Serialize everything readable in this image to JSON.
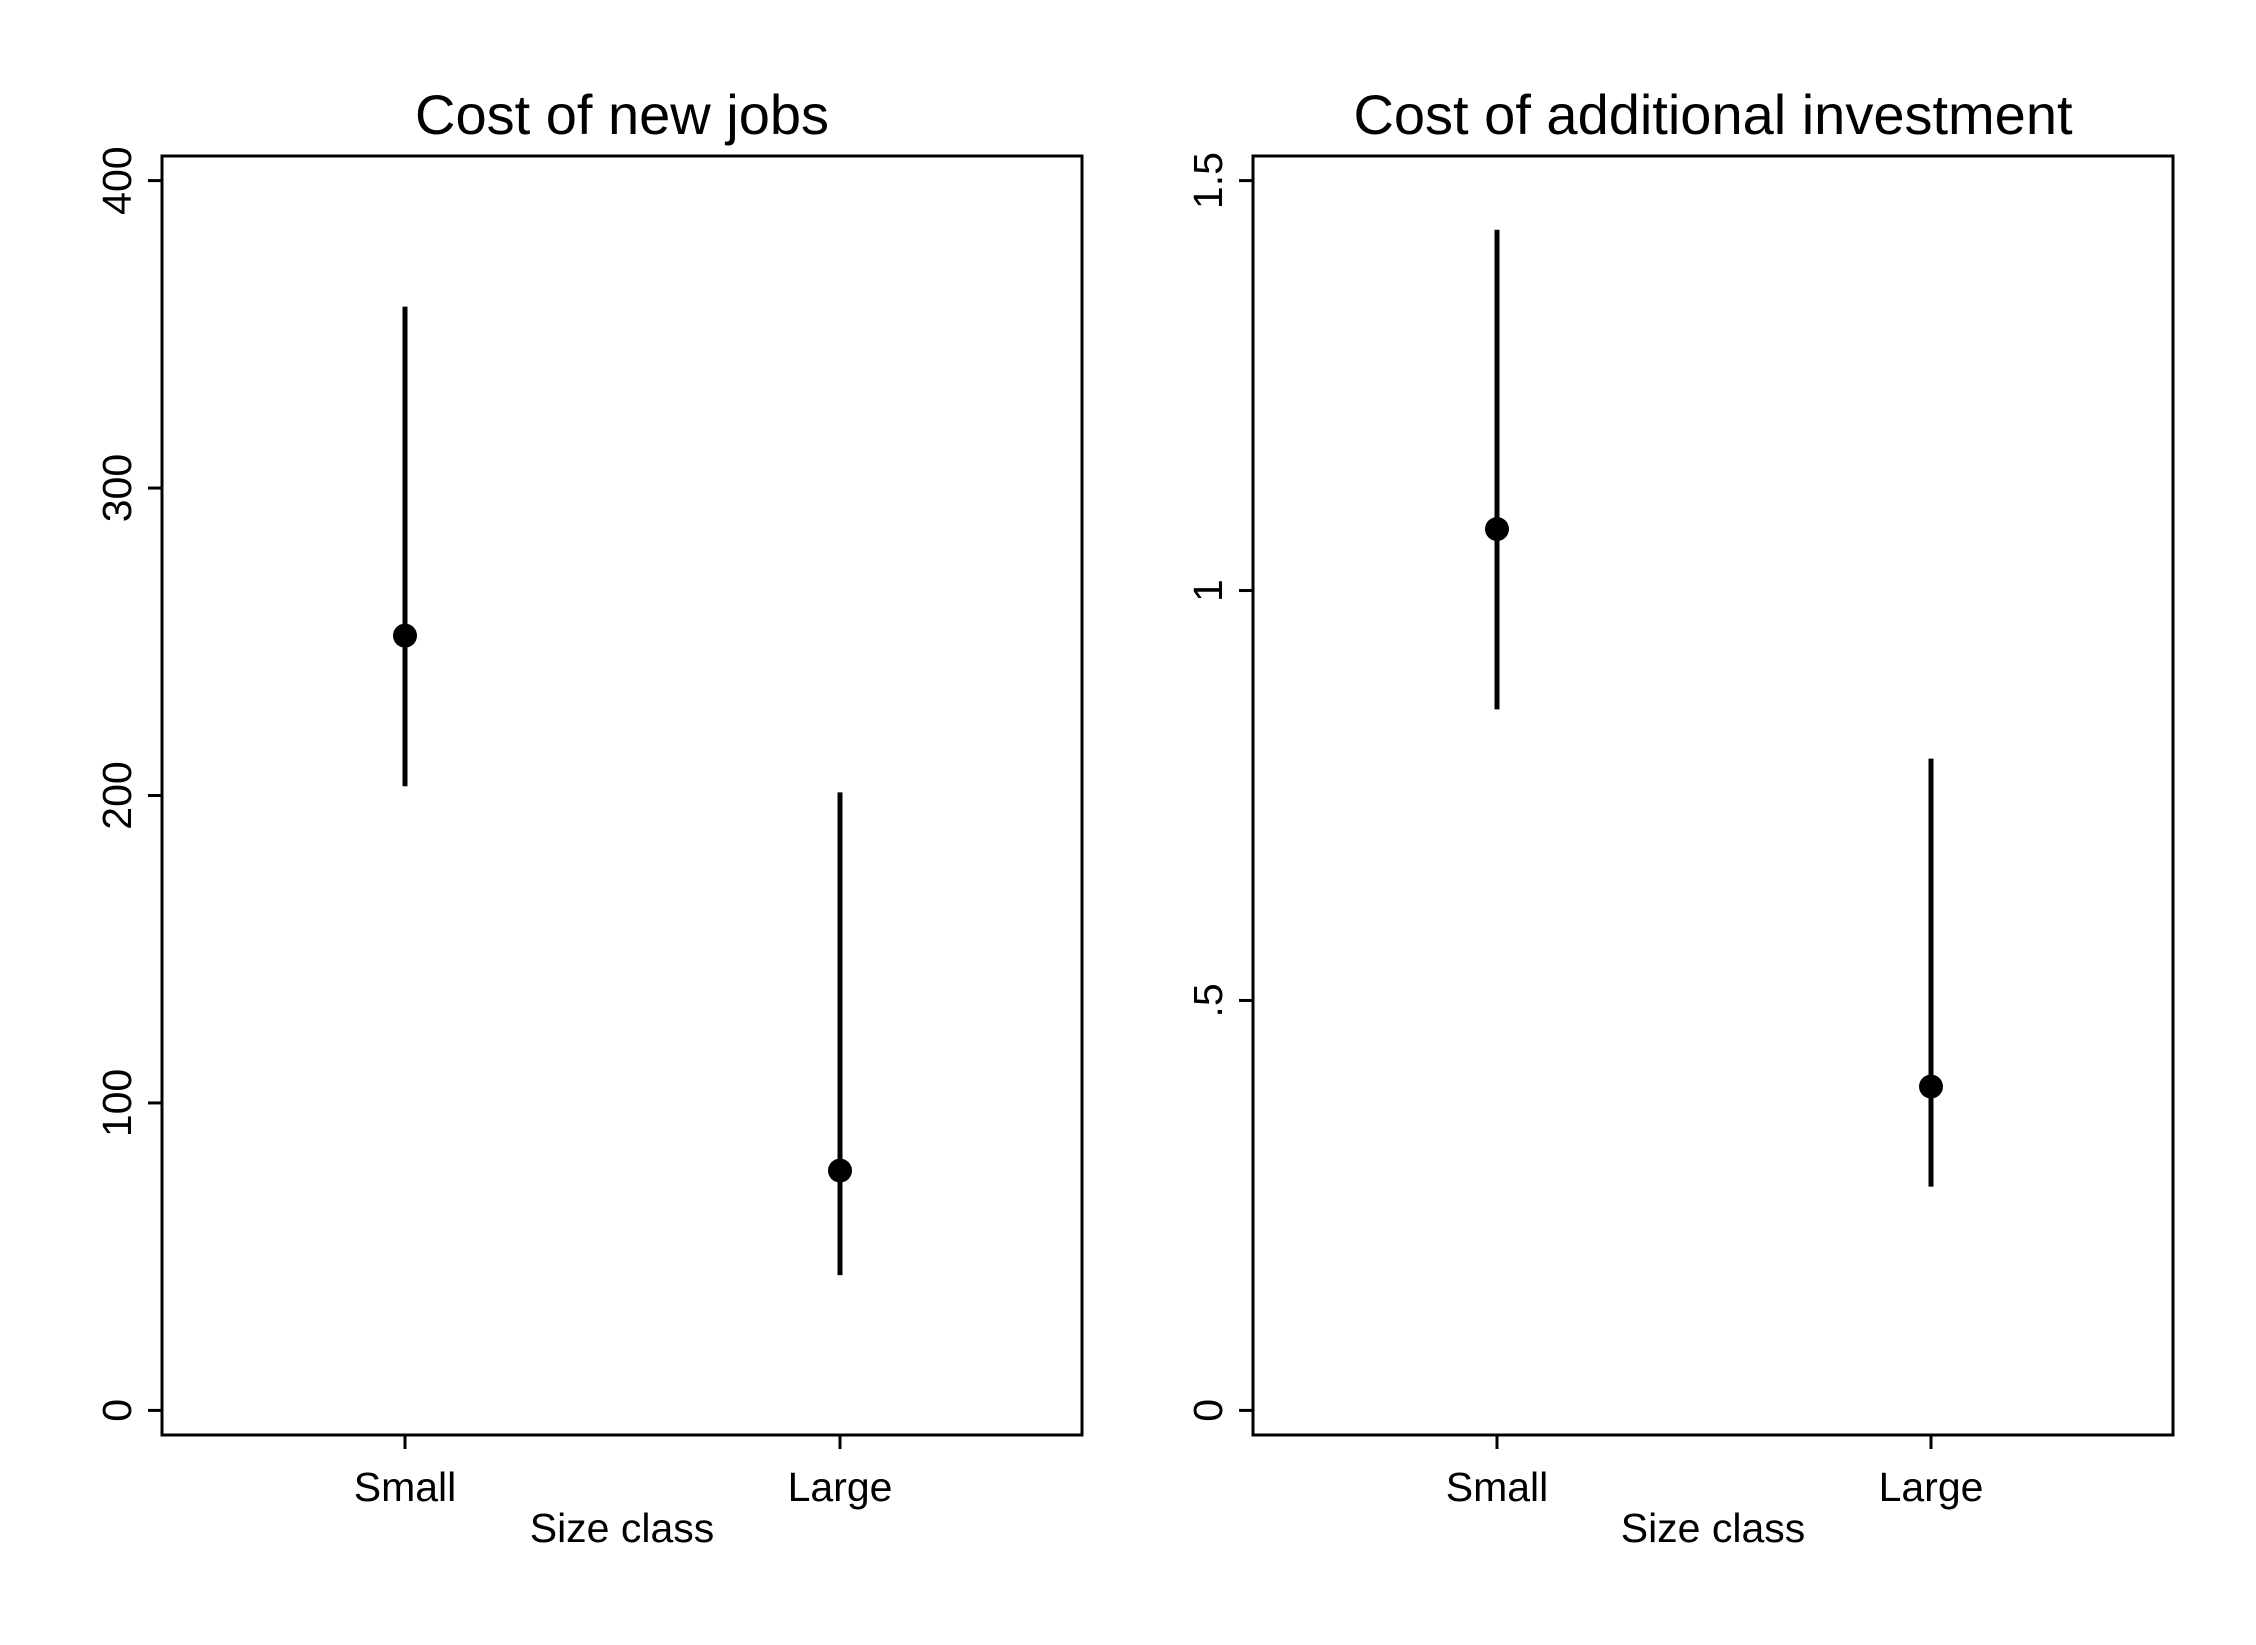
{
  "colors": {
    "ink": "#000000",
    "background": "#ffffff"
  },
  "chart_data": [
    {
      "type": "scatter",
      "title": "Cost of new jobs",
      "xlabel": "Size class",
      "ylabel": "",
      "categories": [
        "Small",
        "Large"
      ],
      "series": [
        {
          "points": [
            {
              "category": "Small",
              "value": 252,
              "ci_low": 203,
              "ci_high": 359
            },
            {
              "category": "Large",
              "value": 78,
              "ci_low": 44,
              "ci_high": 201
            }
          ]
        }
      ],
      "ylim": [
        -8,
        408
      ],
      "yticks": [
        0,
        100,
        200,
        300,
        400
      ],
      "ytick_labels": [
        "0",
        "100",
        "200",
        "300",
        "400"
      ],
      "grid": false,
      "legend": "none"
    },
    {
      "type": "scatter",
      "title": "Cost of additional investment",
      "xlabel": "Size class",
      "ylabel": "",
      "categories": [
        "Small",
        "Large"
      ],
      "series": [
        {
          "points": [
            {
              "category": "Small",
              "value": 1.075,
              "ci_low": 0.855,
              "ci_high": 1.44
            },
            {
              "category": "Large",
              "value": 0.395,
              "ci_low": 0.273,
              "ci_high": 0.795
            }
          ]
        }
      ],
      "ylim": [
        -0.03,
        1.53
      ],
      "yticks": [
        0,
        0.5,
        1,
        1.5
      ],
      "ytick_labels": [
        "0",
        ".5",
        "1",
        "1.5"
      ],
      "grid": false,
      "legend": "none"
    }
  ]
}
